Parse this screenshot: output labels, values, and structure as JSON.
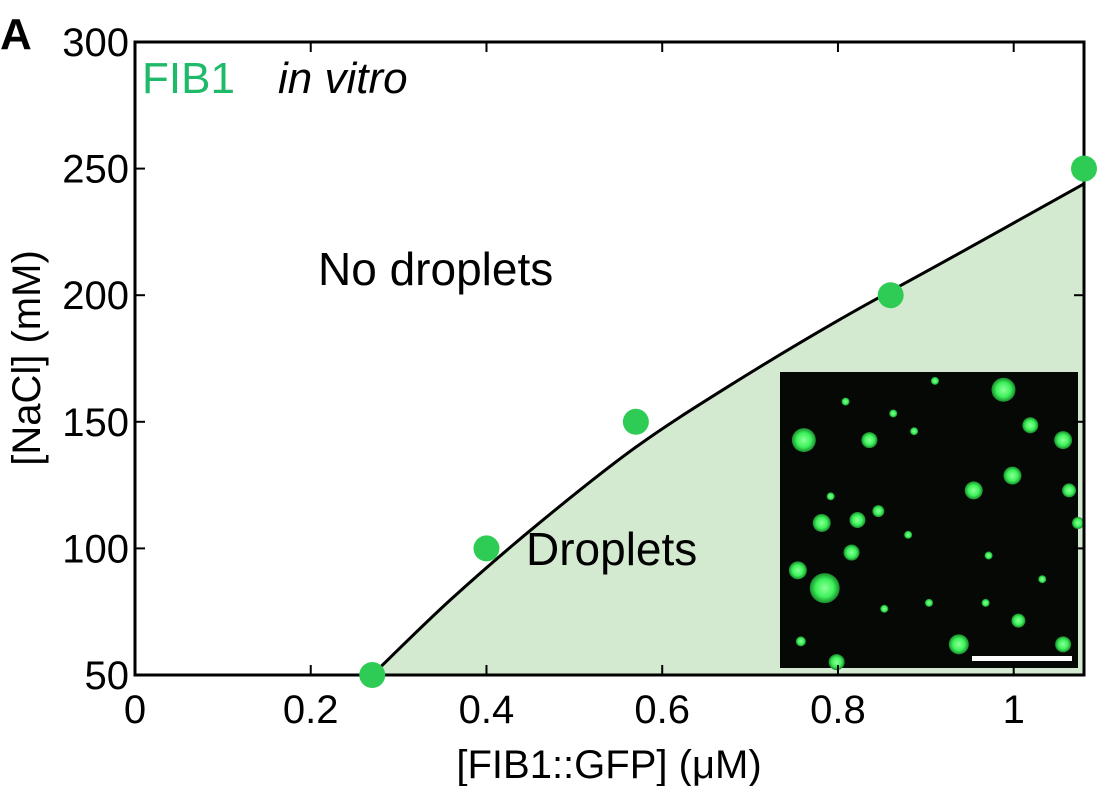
{
  "panel_label": "A",
  "colors": {
    "points": "#2ecc55",
    "region_fill": "#d3ead0",
    "title_accent": "#1fb96a",
    "inset_background": "#050805",
    "inset_droplet": "#3df25a"
  },
  "chart_data": {
    "type": "scatter",
    "title_parts": [
      "FIB1",
      "in vitro"
    ],
    "xlabel": "[FIB1::GFP] (μM)",
    "ylabel": "[NaCl] (mM)",
    "xlim": [
      0,
      1.08
    ],
    "ylim": [
      50,
      300
    ],
    "x_ticks": [
      0,
      0.2,
      0.4,
      0.6,
      0.8,
      1
    ],
    "x_tick_labels": [
      "0",
      "0.2",
      "0.4",
      "0.6",
      "0.8",
      "1"
    ],
    "y_ticks": [
      50,
      100,
      150,
      200,
      250,
      300
    ],
    "y_tick_labels": [
      "50",
      "100",
      "150",
      "200",
      "250",
      "300"
    ],
    "points": [
      {
        "x": 0.27,
        "y": 50
      },
      {
        "x": 0.4,
        "y": 100
      },
      {
        "x": 0.57,
        "y": 150
      },
      {
        "x": 0.86,
        "y": 200
      },
      {
        "x": 1.08,
        "y": 250
      }
    ],
    "boundary_curve": [
      {
        "x": 0.27,
        "y": 50
      },
      {
        "x": 0.36,
        "y": 80
      },
      {
        "x": 0.46,
        "y": 110
      },
      {
        "x": 0.57,
        "y": 140
      },
      {
        "x": 0.68,
        "y": 165
      },
      {
        "x": 0.8,
        "y": 190
      },
      {
        "x": 0.93,
        "y": 215
      },
      {
        "x": 1.08,
        "y": 244
      }
    ],
    "regions": {
      "above": "No droplets",
      "below": "Droplets"
    },
    "grid": false,
    "inset": "fluorescence micrograph of green droplets with white scale bar"
  }
}
